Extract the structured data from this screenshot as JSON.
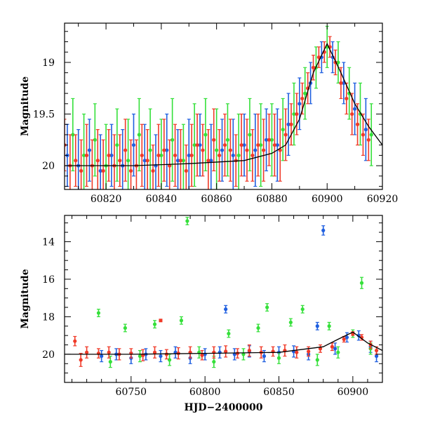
{
  "chart_data": [
    {
      "type": "scatter",
      "title": "",
      "xlabel": "",
      "ylabel": "Magnitude",
      "xlim": [
        60805,
        60920
      ],
      "ylim": [
        20.23,
        18.62
      ],
      "y_inverted": true,
      "xticks": [
        60820,
        60840,
        60860,
        60880,
        60900,
        60920
      ],
      "xtick_labels": [
        "60820",
        "60840",
        "60860",
        "60880",
        "60900",
        "60920"
      ],
      "yticks": [
        19,
        19.5,
        20
      ],
      "ytick_labels": [
        "19",
        "19.5",
        "20"
      ],
      "colors": {
        "blue": "#1f5fe0",
        "green": "#35e03a",
        "red": "#f03a28",
        "model": "#000000"
      },
      "model_curve": {
        "x": [
          60805,
          60830,
          60850,
          60870,
          60880,
          60885,
          60890,
          60895,
          60900,
          60905,
          60910,
          60915,
          60920
        ],
        "y": [
          20.0,
          20.0,
          19.98,
          19.95,
          19.88,
          19.8,
          19.55,
          19.1,
          18.82,
          19.1,
          19.4,
          19.62,
          19.8
        ]
      },
      "series": [
        {
          "color_name": "red",
          "x": [
            60805,
            60807,
            60809,
            60811,
            60813,
            60815,
            60817,
            60819,
            60821,
            60823,
            60825,
            60827,
            60829,
            60831,
            60833,
            60835,
            60837,
            60839,
            60841,
            60843,
            60845,
            60847,
            60849,
            60851,
            60853,
            60855,
            60857,
            60859,
            60861,
            60863,
            60865,
            60867,
            60869,
            60871,
            60873,
            60875,
            60877,
            60879,
            60881,
            60883,
            60885,
            60887,
            60889,
            60891,
            60893,
            60895,
            60897,
            60899,
            60901,
            60903,
            60905,
            60907,
            60909,
            60911,
            60913,
            60915
          ],
          "y": [
            19.8,
            20.0,
            19.95,
            20.05,
            19.9,
            20.0,
            19.95,
            20.05,
            19.9,
            20.0,
            19.95,
            19.85,
            20.05,
            20.0,
            19.9,
            19.95,
            20.05,
            19.9,
            19.85,
            20.0,
            19.9,
            19.95,
            20.05,
            19.9,
            19.8,
            19.85,
            19.95,
            19.75,
            19.9,
            19.8,
            19.85,
            19.95,
            19.8,
            19.85,
            19.9,
            19.8,
            19.85,
            19.75,
            19.8,
            19.85,
            19.7,
            19.6,
            19.5,
            19.35,
            19.25,
            19.05,
            18.95,
            18.9,
            18.85,
            19.0,
            19.2,
            19.35,
            19.5,
            19.6,
            19.7,
            19.75
          ],
          "err": [
            0.25,
            0.3,
            0.25,
            0.3,
            0.3,
            0.25,
            0.3,
            0.3,
            0.25,
            0.3,
            0.25,
            0.3,
            0.3,
            0.25,
            0.3,
            0.3,
            0.25,
            0.3,
            0.3,
            0.25,
            0.3,
            0.3,
            0.25,
            0.3,
            0.3,
            0.25,
            0.3,
            0.3,
            0.25,
            0.3,
            0.3,
            0.25,
            0.3,
            0.3,
            0.25,
            0.3,
            0.3,
            0.25,
            0.3,
            0.3,
            0.25,
            0.2,
            0.2,
            0.15,
            0.15,
            0.12,
            0.1,
            0.1,
            0.1,
            0.12,
            0.15,
            0.15,
            0.2,
            0.2,
            0.2,
            0.2
          ]
        },
        {
          "color_name": "blue",
          "x": [
            60806,
            60810,
            60814,
            60818,
            60822,
            60826,
            60830,
            60834,
            60838,
            60842,
            60846,
            60850,
            60854,
            60858,
            60862,
            60866,
            60870,
            60874,
            60878,
            60882,
            60886,
            60890,
            60894,
            60898,
            60902,
            60906,
            60910,
            60914
          ],
          "y": [
            19.9,
            20.0,
            19.85,
            20.05,
            19.9,
            20.0,
            19.8,
            19.95,
            20.0,
            19.85,
            19.95,
            19.9,
            19.8,
            19.95,
            19.85,
            19.9,
            19.8,
            19.85,
            19.75,
            19.8,
            19.6,
            19.4,
            19.2,
            18.95,
            18.95,
            19.2,
            19.45,
            19.65
          ],
          "err": [
            0.3,
            0.35,
            0.3,
            0.35,
            0.3,
            0.35,
            0.3,
            0.35,
            0.3,
            0.35,
            0.3,
            0.35,
            0.3,
            0.35,
            0.3,
            0.35,
            0.3,
            0.35,
            0.3,
            0.35,
            0.3,
            0.25,
            0.2,
            0.15,
            0.15,
            0.2,
            0.25,
            0.3
          ]
        },
        {
          "color_name": "green",
          "x": [
            60808,
            60812,
            60816,
            60820,
            60824,
            60828,
            60832,
            60836,
            60840,
            60844,
            60848,
            60852,
            60856,
            60860,
            60864,
            60868,
            60872,
            60876,
            60880,
            60884,
            60888,
            60892,
            60896,
            60900,
            60904,
            60908,
            60912,
            60916
          ],
          "y": [
            19.7,
            19.9,
            19.75,
            20.0,
            19.8,
            19.95,
            19.7,
            19.85,
            19.9,
            19.75,
            19.95,
            19.8,
            19.7,
            19.85,
            19.75,
            19.9,
            19.7,
            19.8,
            19.75,
            19.65,
            19.5,
            19.3,
            19.05,
            18.85,
            19.0,
            19.3,
            19.5,
            19.7
          ],
          "err": [
            0.35,
            0.4,
            0.35,
            0.4,
            0.35,
            0.4,
            0.35,
            0.4,
            0.35,
            0.4,
            0.35,
            0.4,
            0.35,
            0.4,
            0.35,
            0.4,
            0.35,
            0.4,
            0.35,
            0.3,
            0.3,
            0.25,
            0.2,
            0.2,
            0.2,
            0.25,
            0.3,
            0.3
          ]
        }
      ]
    },
    {
      "type": "scatter",
      "title": "",
      "xlabel": "HJD−2400000",
      "ylabel": "Magnitude",
      "xlim": [
        60705,
        60920
      ],
      "ylim": [
        21.5,
        12.6
      ],
      "y_inverted": true,
      "xticks": [
        60750,
        60800,
        60850,
        60900
      ],
      "xtick_labels": [
        "60750",
        "60800",
        "60850",
        "60900"
      ],
      "yticks": [
        14,
        16,
        18,
        20
      ],
      "ytick_labels": [
        "14",
        "16",
        "18",
        "20"
      ],
      "colors": {
        "blue": "#1f5fe0",
        "green": "#35e03a",
        "red": "#f03a28",
        "model": "#000000"
      },
      "model_curve": {
        "x": [
          60705,
          60750,
          60800,
          60850,
          60880,
          60890,
          60900,
          60910,
          60920
        ],
        "y": [
          20.0,
          20.0,
          19.95,
          19.9,
          19.6,
          19.2,
          18.82,
          19.4,
          19.8
        ]
      },
      "series": [
        {
          "color_name": "red",
          "x": [
            60712,
            60716,
            60720,
            60728,
            60735,
            60742,
            60750,
            60758,
            60766,
            60774,
            60782,
            60790,
            60798,
            60806,
            60814,
            60822,
            60830,
            60838,
            60846,
            60854,
            60862,
            60870,
            60878,
            60886,
            60894,
            60900,
            60906,
            60912,
            60916,
            60770
          ],
          "y": [
            19.3,
            20.3,
            19.9,
            19.95,
            19.9,
            20.0,
            19.95,
            20.05,
            19.9,
            20.0,
            19.95,
            19.9,
            20.05,
            19.9,
            19.85,
            19.95,
            19.8,
            19.9,
            19.85,
            19.8,
            19.9,
            19.85,
            19.7,
            19.6,
            19.2,
            18.9,
            19.1,
            19.5,
            19.8,
            18.2
          ],
          "err": [
            0.25,
            0.35,
            0.3,
            0.25,
            0.3,
            0.3,
            0.25,
            0.3,
            0.3,
            0.25,
            0.3,
            0.3,
            0.25,
            0.3,
            0.3,
            0.25,
            0.3,
            0.3,
            0.25,
            0.3,
            0.3,
            0.25,
            0.2,
            0.2,
            0.15,
            0.1,
            0.15,
            0.2,
            0.2,
            0.0
          ]
        },
        {
          "color_name": "blue",
          "x": [
            60730,
            60740,
            60750,
            60760,
            60770,
            60780,
            60790,
            60800,
            60810,
            60814,
            60820,
            60830,
            60840,
            60850,
            60860,
            60870,
            60876,
            60880,
            60888,
            60896,
            60904,
            60912,
            60916
          ],
          "y": [
            20.1,
            20.0,
            20.2,
            20.0,
            20.1,
            19.9,
            20.2,
            20.0,
            19.9,
            17.6,
            20.0,
            19.85,
            20.1,
            19.9,
            19.85,
            20.0,
            18.5,
            13.4,
            19.7,
            19.1,
            19.0,
            19.6,
            20.1
          ],
          "err": [
            0.3,
            0.3,
            0.3,
            0.3,
            0.3,
            0.3,
            0.3,
            0.3,
            0.3,
            0.2,
            0.3,
            0.3,
            0.3,
            0.3,
            0.3,
            0.3,
            0.2,
            0.25,
            0.3,
            0.25,
            0.25,
            0.3,
            0.3
          ]
        },
        {
          "color_name": "green",
          "x": [
            60728,
            60736,
            60746,
            60756,
            60766,
            60776,
            60784,
            60788,
            60796,
            60806,
            60816,
            60826,
            60836,
            60842,
            60850,
            60858,
            60866,
            60876,
            60884,
            60890,
            60900,
            60906,
            60912
          ],
          "y": [
            17.8,
            20.4,
            18.6,
            20.1,
            18.4,
            20.3,
            18.2,
            12.9,
            19.9,
            20.4,
            18.9,
            20.0,
            18.6,
            17.5,
            20.2,
            18.3,
            17.6,
            20.3,
            18.5,
            19.9,
            18.9,
            16.2,
            19.7
          ],
          "err": [
            0.2,
            0.3,
            0.2,
            0.3,
            0.2,
            0.3,
            0.2,
            0.2,
            0.3,
            0.3,
            0.2,
            0.3,
            0.2,
            0.2,
            0.3,
            0.2,
            0.2,
            0.3,
            0.2,
            0.3,
            0.2,
            0.3,
            0.3
          ]
        }
      ]
    }
  ]
}
